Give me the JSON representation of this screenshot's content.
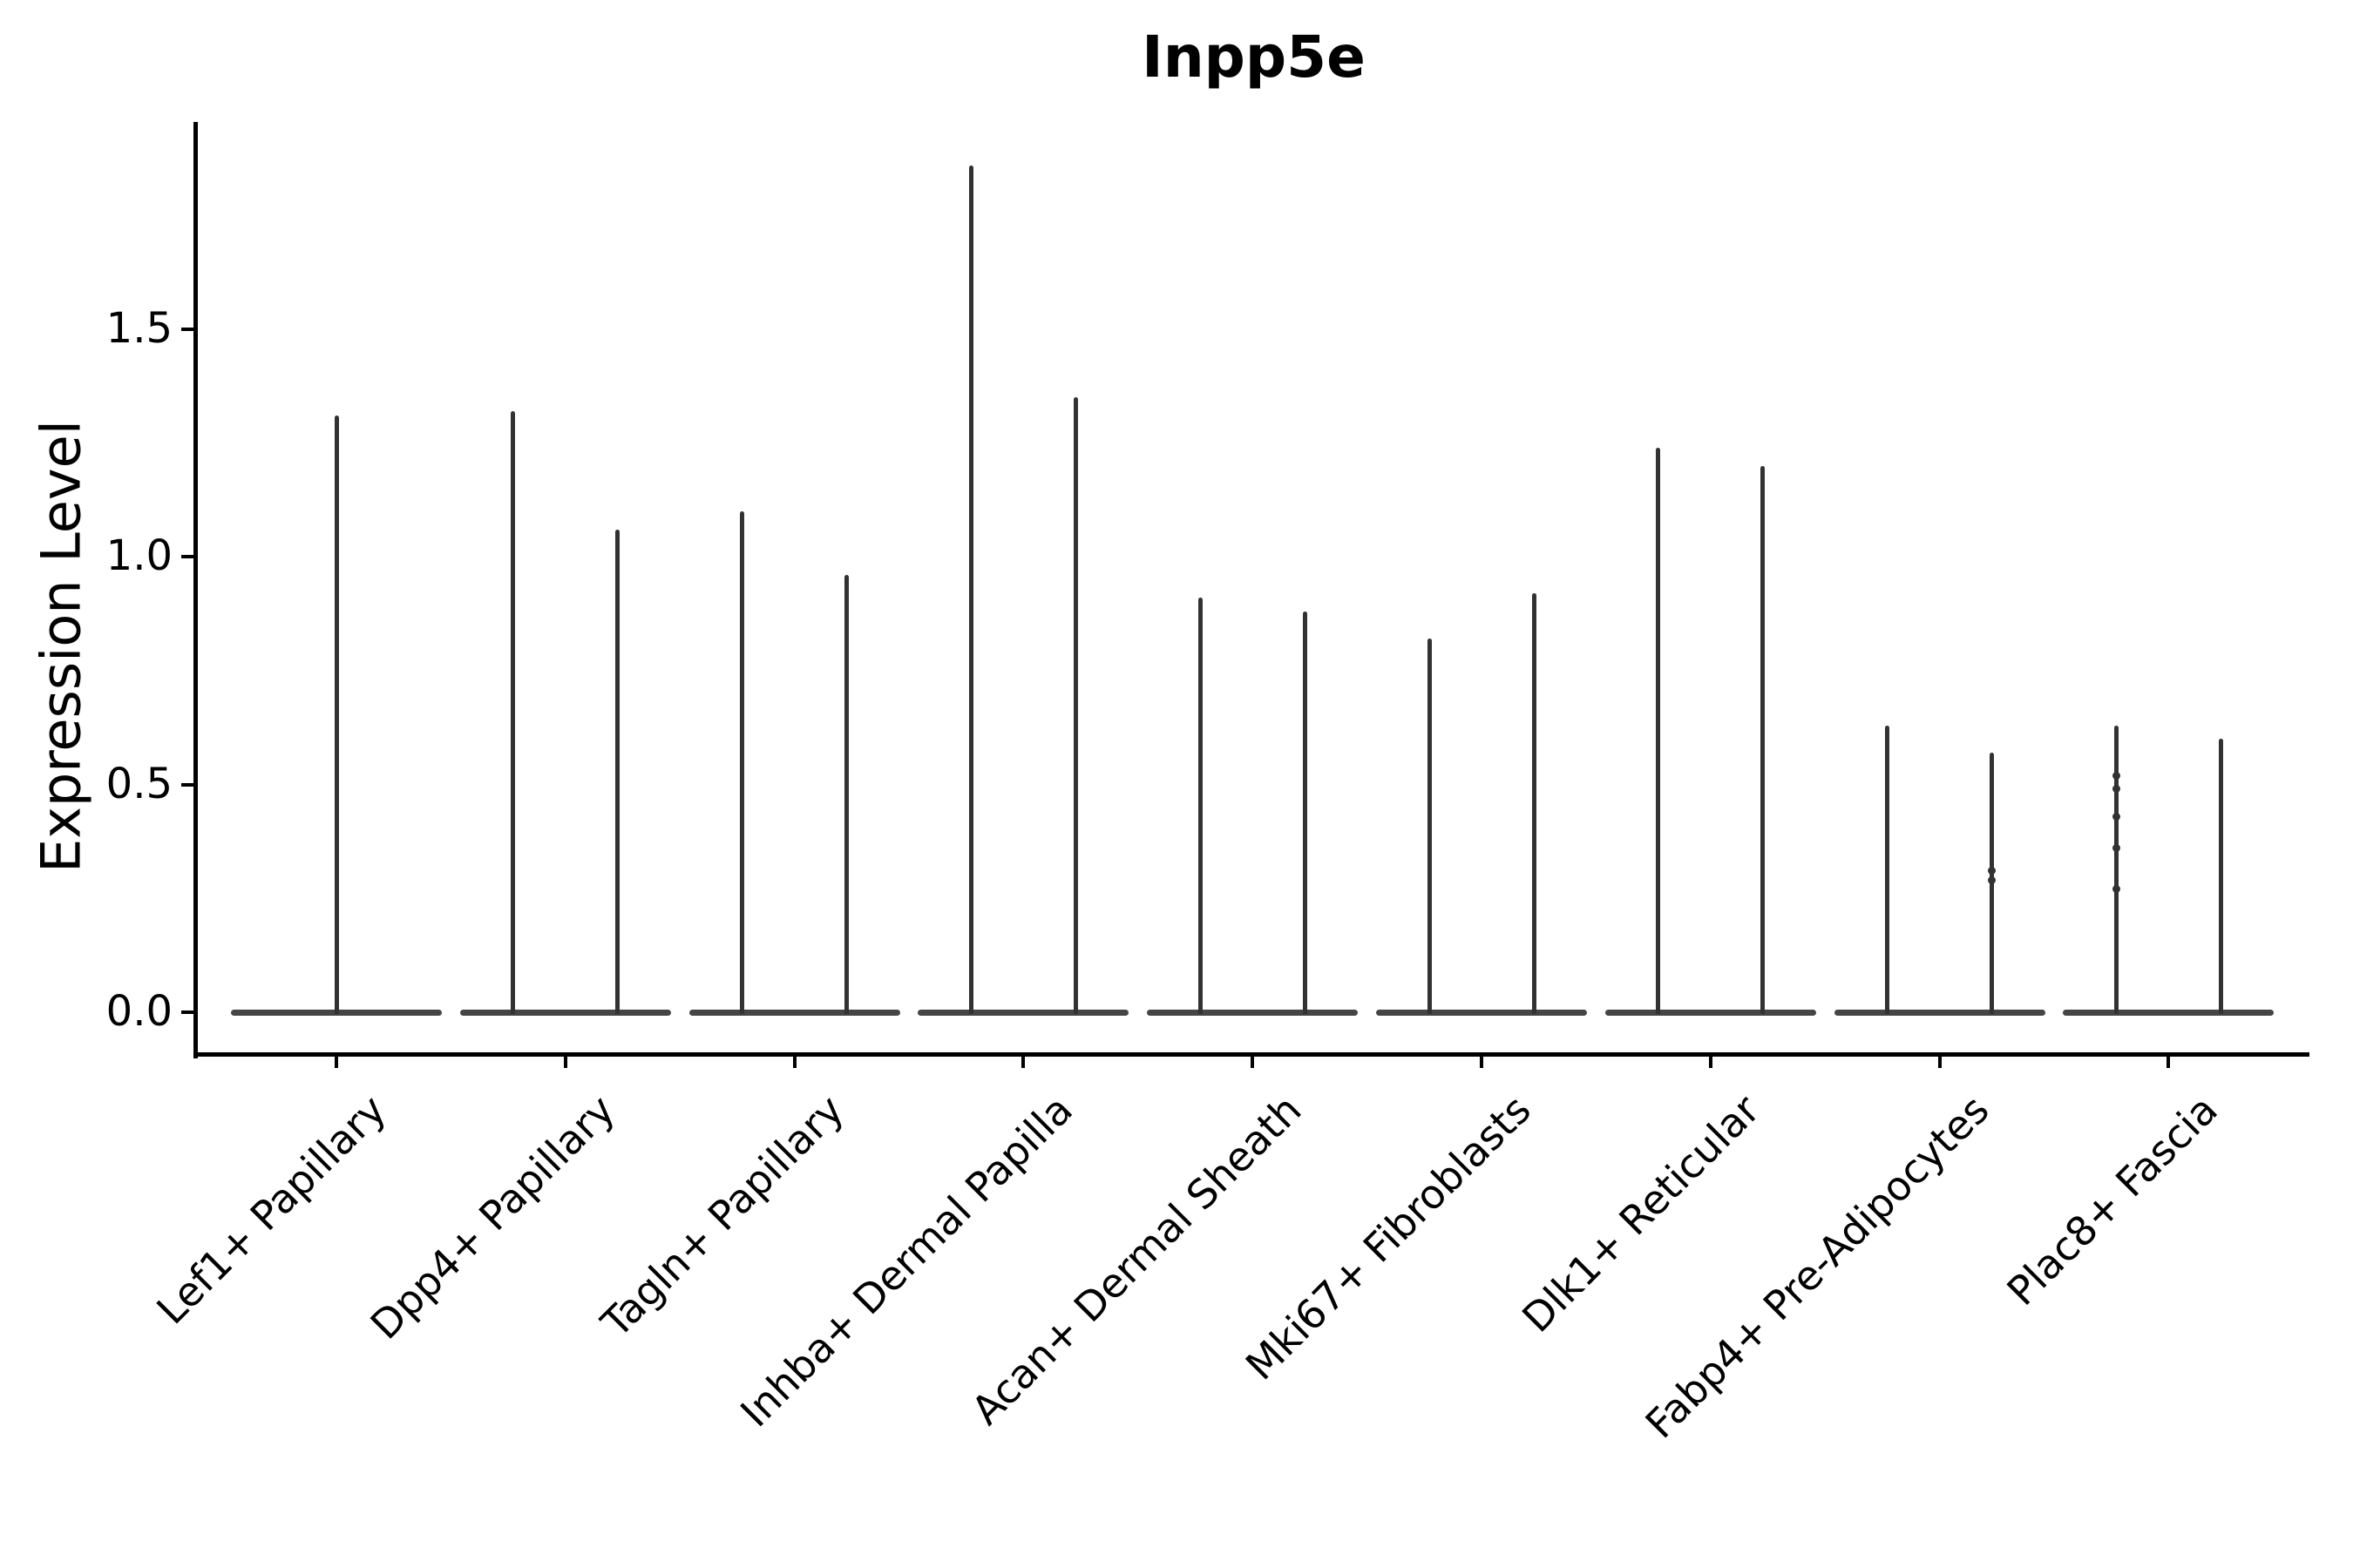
{
  "title": "Inpp5e",
  "colors": {
    "background": "#ffffff",
    "axis": "#000000",
    "text": "#000000",
    "violin_line": "#323232",
    "violin_base": "#454545"
  },
  "chart_data": {
    "type": "violin",
    "title": "Inpp5e",
    "xlabel": "",
    "ylabel": "Expression Level",
    "ylim": [
      -0.09,
      1.96
    ],
    "yticks": [
      0.0,
      0.5,
      1.0,
      1.5
    ],
    "ytick_labels": [
      "0.0",
      "0.5",
      "1.0",
      "1.5"
    ],
    "grid": false,
    "legend_position": "none",
    "note": "Thin needle violins: each violin is a flat base at 0 with a thin vertical spike up to its maximum expression value. Categories 2-9 contain two split violins; category 1 contains a single centered violin.",
    "categories": [
      "Lef1+ Papillary",
      "Dpp4+ Papillary",
      "Tagln+ Papillary",
      "Inhba+ Dermal Papilla",
      "Acan+ Dermal Sheath",
      "Mki67+ Fibroblasts",
      "Dlk1+ Reticular",
      "Fabp4+ Pre-Adipocytes",
      "Plac8+ Fascia"
    ],
    "series": [
      {
        "category": "Lef1+ Papillary",
        "violin_maxima": [
          1.31
        ],
        "point_values": [
          []
        ]
      },
      {
        "category": "Dpp4+ Papillary",
        "violin_maxima": [
          1.32,
          1.06
        ],
        "point_values": [
          [],
          []
        ]
      },
      {
        "category": "Tagln+ Papillary",
        "violin_maxima": [
          1.1,
          0.96
        ],
        "point_values": [
          [],
          []
        ]
      },
      {
        "category": "Inhba+ Dermal Papilla",
        "violin_maxima": [
          1.86,
          1.35
        ],
        "point_values": [
          [],
          []
        ]
      },
      {
        "category": "Acan+ Dermal Sheath",
        "violin_maxima": [
          0.91,
          0.88
        ],
        "point_values": [
          [],
          []
        ]
      },
      {
        "category": "Mki67+ Fibroblasts",
        "violin_maxima": [
          0.82,
          0.92
        ],
        "point_values": [
          [],
          []
        ]
      },
      {
        "category": "Dlk1+ Reticular",
        "violin_maxima": [
          1.24,
          1.2
        ],
        "point_values": [
          [],
          []
        ]
      },
      {
        "category": "Fabp4+ Pre-Adipocytes",
        "violin_maxima": [
          0.63,
          0.57
        ],
        "point_values": [
          [],
          [
            0.31,
            0.29
          ]
        ]
      },
      {
        "category": "Plac8+ Fascia",
        "violin_maxima": [
          0.63,
          0.6
        ],
        "point_values": [
          [
            0.52,
            0.49,
            0.43,
            0.36,
            0.27
          ],
          []
        ]
      }
    ]
  }
}
